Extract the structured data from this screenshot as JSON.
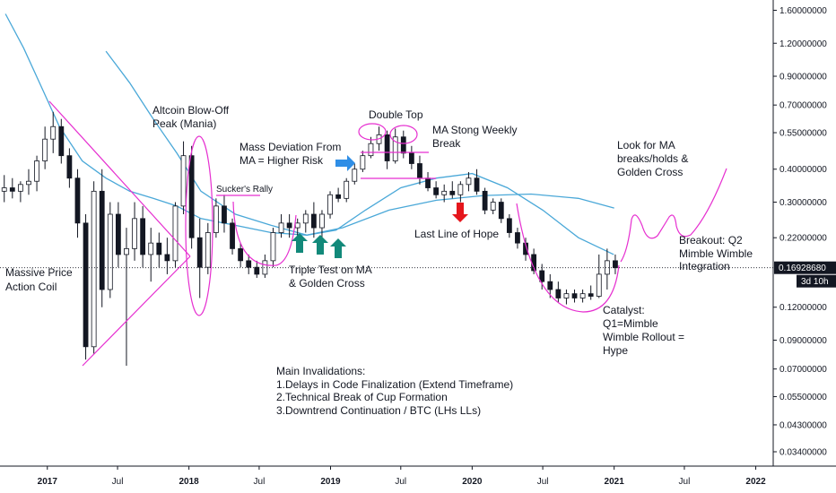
{
  "chart_data": {
    "type": "candlestick",
    "y_scale": "log",
    "ylim": [
      0.03,
      1.75
    ],
    "xlim": [
      "2016-09-01",
      "2022-02-15"
    ],
    "grid": false,
    "price_axis": {
      "ticks": [
        "1.60000000",
        "1.20000000",
        "0.90000000",
        "0.70000000",
        "0.55000000",
        "0.40000000",
        "0.30000000",
        "0.22000000",
        "0.16928680",
        "0.12000000",
        "0.09000000",
        "0.07000000",
        "0.05500000",
        "0.04300000",
        "0.03400000"
      ],
      "tick_values": [
        1.6,
        1.2,
        0.9,
        0.7,
        0.55,
        0.4,
        0.3,
        0.22,
        0.12,
        0.09,
        0.07,
        0.055,
        0.043,
        0.034
      ],
      "current_price_label": "0.16928680",
      "current_price_value": 0.1693,
      "countdown_label": "3d 10h"
    },
    "time_axis": {
      "labels": [
        {
          "text": "2017",
          "date": "2017-01-01",
          "year": true
        },
        {
          "text": "Jul",
          "date": "2017-07-01",
          "year": false
        },
        {
          "text": "2018",
          "date": "2018-01-01",
          "year": true
        },
        {
          "text": "Jul",
          "date": "2018-07-01",
          "year": false
        },
        {
          "text": "2019",
          "date": "2019-01-01",
          "year": true
        },
        {
          "text": "Jul",
          "date": "2019-07-01",
          "year": false
        },
        {
          "text": "2020",
          "date": "2020-01-01",
          "year": true
        },
        {
          "text": "Jul",
          "date": "2020-07-01",
          "year": false
        },
        {
          "text": "2021",
          "date": "2021-01-01",
          "year": true
        },
        {
          "text": "Jul",
          "date": "2021-07-01",
          "year": false
        },
        {
          "text": "2022",
          "date": "2022-01-01",
          "year": true
        }
      ]
    },
    "colors": {
      "candle": "#131722",
      "ma_lines": "#4aa8d8",
      "drawings": "#e62fd0",
      "arrow_up": "#12897a",
      "arrow_down": "#e5161c",
      "arrow_right": "#2f8ee6",
      "price_label_bg": "#131722"
    },
    "candles": [
      {
        "date": "2016-09-05",
        "o": 0.33,
        "h": 0.38,
        "l": 0.3,
        "c": 0.34
      },
      {
        "date": "2016-09-26",
        "o": 0.34,
        "h": 0.37,
        "l": 0.31,
        "c": 0.33
      },
      {
        "date": "2016-10-17",
        "o": 0.33,
        "h": 0.36,
        "l": 0.3,
        "c": 0.35
      },
      {
        "date": "2016-11-07",
        "o": 0.35,
        "h": 0.4,
        "l": 0.32,
        "c": 0.36
      },
      {
        "date": "2016-11-28",
        "o": 0.36,
        "h": 0.45,
        "l": 0.33,
        "c": 0.43
      },
      {
        "date": "2016-12-19",
        "o": 0.43,
        "h": 0.58,
        "l": 0.4,
        "c": 0.52
      },
      {
        "date": "2017-01-09",
        "o": 0.52,
        "h": 0.66,
        "l": 0.46,
        "c": 0.58
      },
      {
        "date": "2017-01-30",
        "o": 0.58,
        "h": 0.62,
        "l": 0.42,
        "c": 0.45
      },
      {
        "date": "2017-02-20",
        "o": 0.45,
        "h": 0.48,
        "l": 0.34,
        "c": 0.37
      },
      {
        "date": "2017-03-13",
        "o": 0.37,
        "h": 0.4,
        "l": 0.22,
        "c": 0.25
      },
      {
        "date": "2017-04-03",
        "o": 0.25,
        "h": 0.27,
        "l": 0.076,
        "c": 0.085
      },
      {
        "date": "2017-04-24",
        "o": 0.085,
        "h": 0.36,
        "l": 0.08,
        "c": 0.33
      },
      {
        "date": "2017-05-15",
        "o": 0.33,
        "h": 0.4,
        "l": 0.12,
        "c": 0.14
      },
      {
        "date": "2017-06-05",
        "o": 0.14,
        "h": 0.3,
        "l": 0.13,
        "c": 0.27
      },
      {
        "date": "2017-06-26",
        "o": 0.27,
        "h": 0.3,
        "l": 0.17,
        "c": 0.19
      },
      {
        "date": "2017-07-17",
        "o": 0.19,
        "h": 0.24,
        "l": 0.072,
        "c": 0.2
      },
      {
        "date": "2017-08-07",
        "o": 0.2,
        "h": 0.3,
        "l": 0.18,
        "c": 0.26
      },
      {
        "date": "2017-08-28",
        "o": 0.26,
        "h": 0.29,
        "l": 0.17,
        "c": 0.19
      },
      {
        "date": "2017-09-18",
        "o": 0.19,
        "h": 0.24,
        "l": 0.15,
        "c": 0.21
      },
      {
        "date": "2017-10-09",
        "o": 0.21,
        "h": 0.23,
        "l": 0.17,
        "c": 0.19
      },
      {
        "date": "2017-10-30",
        "o": 0.19,
        "h": 0.22,
        "l": 0.16,
        "c": 0.18
      },
      {
        "date": "2017-11-20",
        "o": 0.18,
        "h": 0.3,
        "l": 0.17,
        "c": 0.29
      },
      {
        "date": "2017-12-11",
        "o": 0.29,
        "h": 0.51,
        "l": 0.27,
        "c": 0.45
      },
      {
        "date": "2018-01-01",
        "o": 0.45,
        "h": 0.49,
        "l": 0.2,
        "c": 0.22
      },
      {
        "date": "2018-01-22",
        "o": 0.22,
        "h": 0.26,
        "l": 0.13,
        "c": 0.17
      },
      {
        "date": "2018-02-12",
        "o": 0.17,
        "h": 0.25,
        "l": 0.16,
        "c": 0.23
      },
      {
        "date": "2018-03-05",
        "o": 0.23,
        "h": 0.31,
        "l": 0.22,
        "c": 0.29
      },
      {
        "date": "2018-03-26",
        "o": 0.29,
        "h": 0.32,
        "l": 0.23,
        "c": 0.25
      },
      {
        "date": "2018-04-16",
        "o": 0.25,
        "h": 0.26,
        "l": 0.19,
        "c": 0.2
      },
      {
        "date": "2018-05-07",
        "o": 0.2,
        "h": 0.21,
        "l": 0.17,
        "c": 0.18
      },
      {
        "date": "2018-05-28",
        "o": 0.18,
        "h": 0.19,
        "l": 0.16,
        "c": 0.17
      },
      {
        "date": "2018-06-18",
        "o": 0.17,
        "h": 0.18,
        "l": 0.155,
        "c": 0.16
      },
      {
        "date": "2018-07-09",
        "o": 0.16,
        "h": 0.19,
        "l": 0.155,
        "c": 0.18
      },
      {
        "date": "2018-07-30",
        "o": 0.18,
        "h": 0.24,
        "l": 0.17,
        "c": 0.23
      },
      {
        "date": "2018-08-20",
        "o": 0.23,
        "h": 0.27,
        "l": 0.22,
        "c": 0.25
      },
      {
        "date": "2018-09-10",
        "o": 0.25,
        "h": 0.27,
        "l": 0.22,
        "c": 0.24
      },
      {
        "date": "2018-10-01",
        "o": 0.24,
        "h": 0.26,
        "l": 0.21,
        "c": 0.25
      },
      {
        "date": "2018-10-22",
        "o": 0.25,
        "h": 0.28,
        "l": 0.23,
        "c": 0.27
      },
      {
        "date": "2018-11-12",
        "o": 0.27,
        "h": 0.3,
        "l": 0.22,
        "c": 0.24
      },
      {
        "date": "2018-12-03",
        "o": 0.24,
        "h": 0.28,
        "l": 0.21,
        "c": 0.27
      },
      {
        "date": "2018-12-24",
        "o": 0.27,
        "h": 0.33,
        "l": 0.26,
        "c": 0.32
      },
      {
        "date": "2019-01-14",
        "o": 0.32,
        "h": 0.34,
        "l": 0.3,
        "c": 0.31
      },
      {
        "date": "2019-02-04",
        "o": 0.31,
        "h": 0.37,
        "l": 0.3,
        "c": 0.36
      },
      {
        "date": "2019-02-25",
        "o": 0.36,
        "h": 0.42,
        "l": 0.35,
        "c": 0.4
      },
      {
        "date": "2019-03-18",
        "o": 0.4,
        "h": 0.47,
        "l": 0.39,
        "c": 0.45
      },
      {
        "date": "2019-04-08",
        "o": 0.45,
        "h": 0.53,
        "l": 0.44,
        "c": 0.5
      },
      {
        "date": "2019-04-29",
        "o": 0.5,
        "h": 0.58,
        "l": 0.47,
        "c": 0.54
      },
      {
        "date": "2019-05-20",
        "o": 0.54,
        "h": 0.56,
        "l": 0.4,
        "c": 0.43
      },
      {
        "date": "2019-06-10",
        "o": 0.43,
        "h": 0.57,
        "l": 0.42,
        "c": 0.53
      },
      {
        "date": "2019-07-01",
        "o": 0.53,
        "h": 0.56,
        "l": 0.44,
        "c": 0.46
      },
      {
        "date": "2019-07-22",
        "o": 0.46,
        "h": 0.49,
        "l": 0.4,
        "c": 0.42
      },
      {
        "date": "2019-08-12",
        "o": 0.42,
        "h": 0.45,
        "l": 0.35,
        "c": 0.37
      },
      {
        "date": "2019-09-02",
        "o": 0.37,
        "h": 0.39,
        "l": 0.33,
        "c": 0.34
      },
      {
        "date": "2019-09-23",
        "o": 0.34,
        "h": 0.36,
        "l": 0.31,
        "c": 0.32
      },
      {
        "date": "2019-10-14",
        "o": 0.32,
        "h": 0.35,
        "l": 0.3,
        "c": 0.33
      },
      {
        "date": "2019-11-04",
        "o": 0.33,
        "h": 0.36,
        "l": 0.31,
        "c": 0.32
      },
      {
        "date": "2019-11-25",
        "o": 0.32,
        "h": 0.36,
        "l": 0.3,
        "c": 0.35
      },
      {
        "date": "2019-12-16",
        "o": 0.35,
        "h": 0.39,
        "l": 0.33,
        "c": 0.37
      },
      {
        "date": "2020-01-06",
        "o": 0.37,
        "h": 0.4,
        "l": 0.32,
        "c": 0.33
      },
      {
        "date": "2020-01-27",
        "o": 0.33,
        "h": 0.34,
        "l": 0.27,
        "c": 0.28
      },
      {
        "date": "2020-02-17",
        "o": 0.28,
        "h": 0.31,
        "l": 0.27,
        "c": 0.3
      },
      {
        "date": "2020-03-09",
        "o": 0.3,
        "h": 0.31,
        "l": 0.25,
        "c": 0.26
      },
      {
        "date": "2020-03-30",
        "o": 0.26,
        "h": 0.27,
        "l": 0.22,
        "c": 0.23
      },
      {
        "date": "2020-04-20",
        "o": 0.23,
        "h": 0.24,
        "l": 0.2,
        "c": 0.21
      },
      {
        "date": "2020-05-11",
        "o": 0.21,
        "h": 0.22,
        "l": 0.18,
        "c": 0.19
      },
      {
        "date": "2020-06-01",
        "o": 0.19,
        "h": 0.2,
        "l": 0.16,
        "c": 0.165
      },
      {
        "date": "2020-06-22",
        "o": 0.165,
        "h": 0.175,
        "l": 0.14,
        "c": 0.15
      },
      {
        "date": "2020-07-13",
        "o": 0.15,
        "h": 0.16,
        "l": 0.13,
        "c": 0.14
      },
      {
        "date": "2020-08-03",
        "o": 0.14,
        "h": 0.15,
        "l": 0.125,
        "c": 0.13
      },
      {
        "date": "2020-08-24",
        "o": 0.13,
        "h": 0.14,
        "l": 0.123,
        "c": 0.135
      },
      {
        "date": "2020-09-14",
        "o": 0.135,
        "h": 0.14,
        "l": 0.125,
        "c": 0.13
      },
      {
        "date": "2020-10-05",
        "o": 0.13,
        "h": 0.14,
        "l": 0.125,
        "c": 0.135
      },
      {
        "date": "2020-10-26",
        "o": 0.135,
        "h": 0.145,
        "l": 0.128,
        "c": 0.132
      },
      {
        "date": "2020-11-16",
        "o": 0.132,
        "h": 0.19,
        "l": 0.13,
        "c": 0.16
      },
      {
        "date": "2020-12-07",
        "o": 0.16,
        "h": 0.2,
        "l": 0.14,
        "c": 0.18
      },
      {
        "date": "2020-12-28",
        "o": 0.18,
        "h": 0.19,
        "l": 0.16,
        "c": 0.1693
      }
    ],
    "ma_short": [
      {
        "date": "2016-09-15",
        "v": 1.55
      },
      {
        "date": "2016-11-01",
        "v": 1.15
      },
      {
        "date": "2016-12-20",
        "v": 0.8
      },
      {
        "date": "2017-02-01",
        "v": 0.58
      },
      {
        "date": "2017-04-01",
        "v": 0.43
      },
      {
        "date": "2017-06-01",
        "v": 0.37
      },
      {
        "date": "2017-08-01",
        "v": 0.33
      },
      {
        "date": "2017-10-01",
        "v": 0.31
      },
      {
        "date": "2017-12-01",
        "v": 0.29
      },
      {
        "date": "2018-02-01",
        "v": 0.26
      },
      {
        "date": "2018-05-01",
        "v": 0.245
      },
      {
        "date": "2018-08-01",
        "v": 0.23
      },
      {
        "date": "2018-11-01",
        "v": 0.225
      },
      {
        "date": "2019-01-15",
        "v": 0.235
      },
      {
        "date": "2019-04-01",
        "v": 0.28
      },
      {
        "date": "2019-07-01",
        "v": 0.34
      },
      {
        "date": "2019-10-01",
        "v": 0.37
      },
      {
        "date": "2020-01-01",
        "v": 0.385
      },
      {
        "date": "2020-04-01",
        "v": 0.34
      },
      {
        "date": "2020-07-01",
        "v": 0.28
      },
      {
        "date": "2020-10-01",
        "v": 0.22
      },
      {
        "date": "2020-12-31",
        "v": 0.19
      }
    ],
    "ma_long": [
      {
        "date": "2017-06-01",
        "v": 1.12
      },
      {
        "date": "2017-08-01",
        "v": 0.85
      },
      {
        "date": "2017-10-01",
        "v": 0.62
      },
      {
        "date": "2017-12-01",
        "v": 0.46
      },
      {
        "date": "2018-02-01",
        "v": 0.33
      },
      {
        "date": "2018-05-01",
        "v": 0.27
      },
      {
        "date": "2018-08-01",
        "v": 0.245
      },
      {
        "date": "2018-11-01",
        "v": 0.225
      },
      {
        "date": "2019-02-01",
        "v": 0.24
      },
      {
        "date": "2019-06-01",
        "v": 0.28
      },
      {
        "date": "2019-10-01",
        "v": 0.305
      },
      {
        "date": "2020-02-01",
        "v": 0.318
      },
      {
        "date": "2020-06-01",
        "v": 0.322
      },
      {
        "date": "2020-10-01",
        "v": 0.31
      },
      {
        "date": "2021-01-01",
        "v": 0.285
      }
    ],
    "annotations": {
      "massive_coil": [
        "Massive Price",
        "Action Coil"
      ],
      "altcoin_peak": [
        "Altcoin Blow-Off",
        "Peak (Mania)"
      ],
      "suckers_rally": "Sucker's Rally",
      "mass_deviation": [
        "Mass Deviation From",
        "MA = Higher Risk"
      ],
      "double_top": "Double Top",
      "ma_strong": [
        "MA Stong Weekly",
        "Break"
      ],
      "triple_test": [
        "Triple Test on MA",
        "& Golden Cross"
      ],
      "last_line": "Last Line of Hope",
      "look_for_ma": [
        "Look for MA",
        "breaks/holds &",
        "Golden Cross"
      ],
      "breakout": [
        "Breakout: Q2",
        "Mimble Wimble",
        "Integration"
      ],
      "catalyst": [
        "Catalyst:",
        "Q1=Mimble",
        "Wimble Rollout =",
        "Hype"
      ],
      "invalidations": [
        "Main Invalidations:",
        "1.Delays in Code Finalization (Extend Timeframe)",
        "2.Technical Break of Cup Formation",
        "3.Downtrend Continuation / BTC (LHs LLs)"
      ]
    }
  }
}
